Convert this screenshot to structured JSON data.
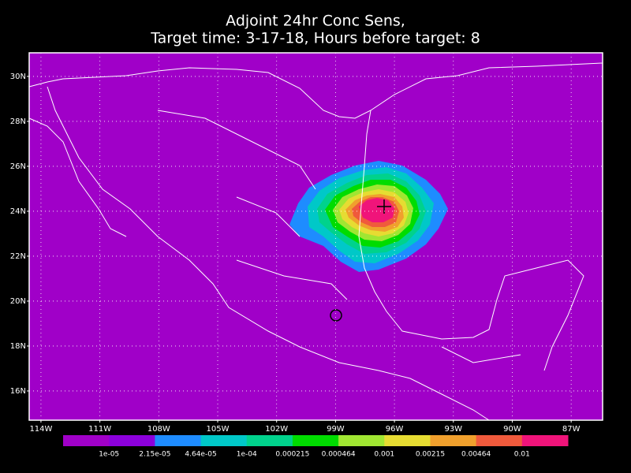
{
  "map": {
    "title": [
      "Adjoint 24hr Conc Sens,",
      "Target time: 3-17-18, Hours before target: 8"
    ],
    "lonlim": [
      -114.6,
      -85.4
    ],
    "latlim": [
      14.7,
      31.05
    ],
    "lat_ticks": [
      {
        "value": 30,
        "label": "30N"
      },
      {
        "value": 28,
        "label": "28N"
      },
      {
        "value": 26,
        "label": "26N"
      },
      {
        "value": 24,
        "label": "24N"
      },
      {
        "value": 22,
        "label": "22N"
      },
      {
        "value": 20,
        "label": "20N"
      },
      {
        "value": 18,
        "label": "18N"
      },
      {
        "value": 16,
        "label": "16N"
      }
    ],
    "lon_ticks": [
      {
        "value": -114,
        "label": "114W"
      },
      {
        "value": -111,
        "label": "111W"
      },
      {
        "value": -108,
        "label": "108W"
      },
      {
        "value": -105,
        "label": "105W"
      },
      {
        "value": -102,
        "label": "102W"
      },
      {
        "value": -99,
        "label": "99W"
      },
      {
        "value": -96,
        "label": "96W"
      },
      {
        "value": -93,
        "label": "93W"
      },
      {
        "value": -90,
        "label": "90W"
      },
      {
        "value": -87,
        "label": "87W"
      }
    ],
    "background": "#a000c8",
    "grid": true,
    "colorbar": {
      "labels": [
        "1e-05",
        "2.15e-05",
        "4.64e-05",
        "1e-04",
        "0.000215",
        "0.000464",
        "0.001",
        "0.00215",
        "0.00464",
        "0.01"
      ],
      "colors": [
        "#a000c8",
        "#8c00dc",
        "#1e8cff",
        "#00c8c8",
        "#00d28c",
        "#00dc00",
        "#a0e632",
        "#e6dc32",
        "#f0a02d",
        "#f05a3c",
        "#f0147a"
      ]
    }
  }
}
